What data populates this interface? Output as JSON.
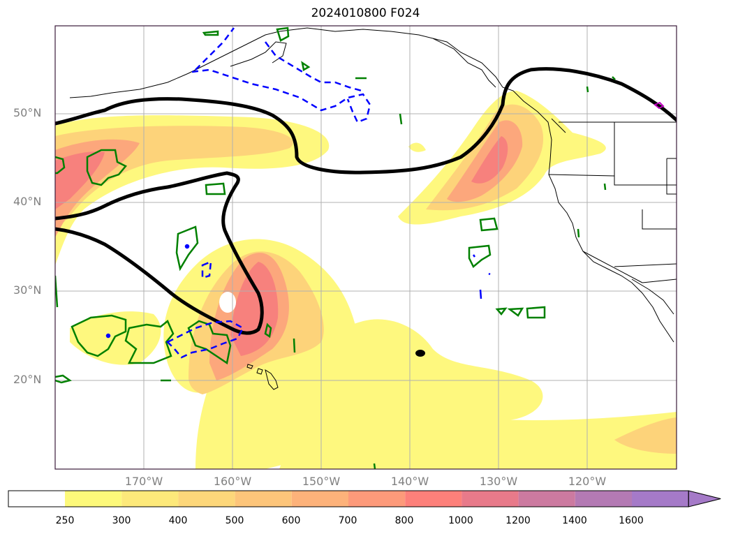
{
  "title": "2024010800 F024",
  "axes": {
    "lat_labels": [
      "50°N",
      "40°N",
      "30°N",
      "20°N"
    ],
    "lon_labels": [
      "170°W",
      "160°W",
      "150°W",
      "140°W",
      "130°W",
      "120°W"
    ]
  },
  "colorbar": {
    "levels": [
      "250",
      "300",
      "400",
      "500",
      "600",
      "700",
      "800",
      "1000",
      "1200",
      "1400",
      "1600"
    ],
    "colors": [
      "#ffffff",
      "#fdf97a",
      "#fde97a",
      "#fdd77a",
      "#fdc57a",
      "#fdb27a",
      "#fd9a7a",
      "#fd807a",
      "#e87a8a",
      "#cc7aa0",
      "#b47ab4",
      "#a57ac8"
    ],
    "extend": "max"
  },
  "colors": {
    "fill_low": "#fef87e",
    "fill_mid": "#fdd37a",
    "fill_high": "#fc9a7c",
    "fill_max": "#f87a7c",
    "thick_contour": "#000000",
    "green_contour": "#008000",
    "blue_dashed": "#0000ff",
    "magenta": "#c000c0",
    "grid": "#b0b0b0"
  }
}
